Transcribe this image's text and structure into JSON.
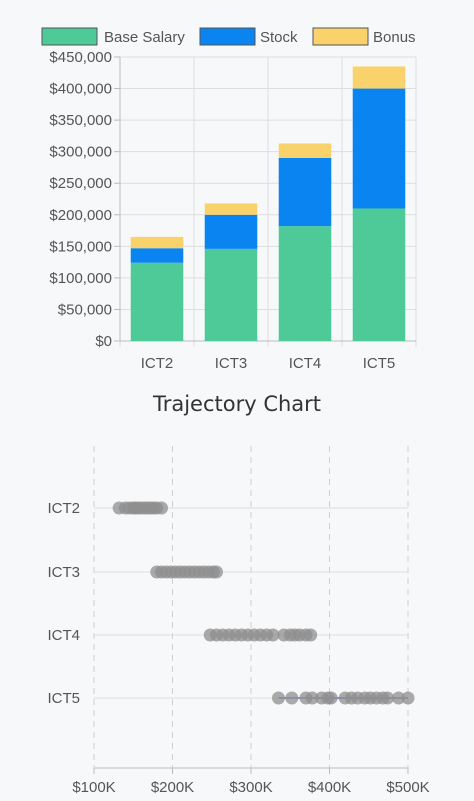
{
  "chart_data": [
    {
      "type": "bar",
      "stacked": true,
      "categories": [
        "ICT2",
        "ICT3",
        "ICT4",
        "ICT5"
      ],
      "series": [
        {
          "name": "Base Salary",
          "color": "#4ec998",
          "values": [
            124000,
            146000,
            182000,
            210000
          ]
        },
        {
          "name": "Stock",
          "color": "#0a84f0",
          "values": [
            23000,
            54000,
            108000,
            190000
          ]
        },
        {
          "name": "Bonus",
          "color": "#f9d26b",
          "values": [
            18000,
            18000,
            23000,
            35000
          ]
        }
      ],
      "ylim": [
        0,
        450000
      ],
      "yticks": [
        0,
        50000,
        100000,
        150000,
        200000,
        250000,
        300000,
        350000,
        400000,
        450000
      ],
      "ytick_labels": [
        "$0",
        "$50,000",
        "$100,000",
        "$150,000",
        "$200,000",
        "$250,000",
        "$300,000",
        "$350,000",
        "$400,000",
        "$450,000"
      ],
      "legend_position": "top",
      "grid": true
    },
    {
      "type": "scatter",
      "title": "Trajectory Chart",
      "categories": [
        "ICT2",
        "ICT3",
        "ICT4",
        "ICT5"
      ],
      "point_color": "#8f8f8f",
      "line_color": "#8f8ed1",
      "xlim": [
        100000,
        500000
      ],
      "xticks": [
        100000,
        200000,
        300000,
        400000,
        500000
      ],
      "xtick_labels": [
        "$100K",
        "$200K",
        "$300K",
        "$400K",
        "$500K"
      ],
      "grid": true,
      "points": [
        {
          "category": "ICT2",
          "x": [
            132000,
            140000,
            145000,
            150000,
            153000,
            156000,
            160000,
            164000,
            168000,
            172000,
            176000,
            180000,
            186000
          ]
        },
        {
          "category": "ICT3",
          "x": [
            180000,
            186000,
            192000,
            198000,
            204000,
            210000,
            216000,
            222000,
            228000,
            234000,
            240000,
            246000,
            252000,
            256000
          ]
        },
        {
          "category": "ICT4",
          "x": [
            248000,
            256000,
            264000,
            272000,
            280000,
            288000,
            296000,
            304000,
            312000,
            320000,
            328000,
            342000,
            350000,
            356000,
            362000,
            370000,
            376000
          ]
        },
        {
          "category": "ICT5",
          "x": [
            335000,
            352000,
            370000,
            378000,
            390000,
            398000,
            402000,
            420000,
            428000,
            436000,
            445000,
            452000,
            460000,
            468000,
            474000,
            488000,
            500000
          ]
        }
      ],
      "lines": [
        {
          "category": "ICT5",
          "x_range": [
            335000,
            500000
          ]
        }
      ]
    }
  ]
}
